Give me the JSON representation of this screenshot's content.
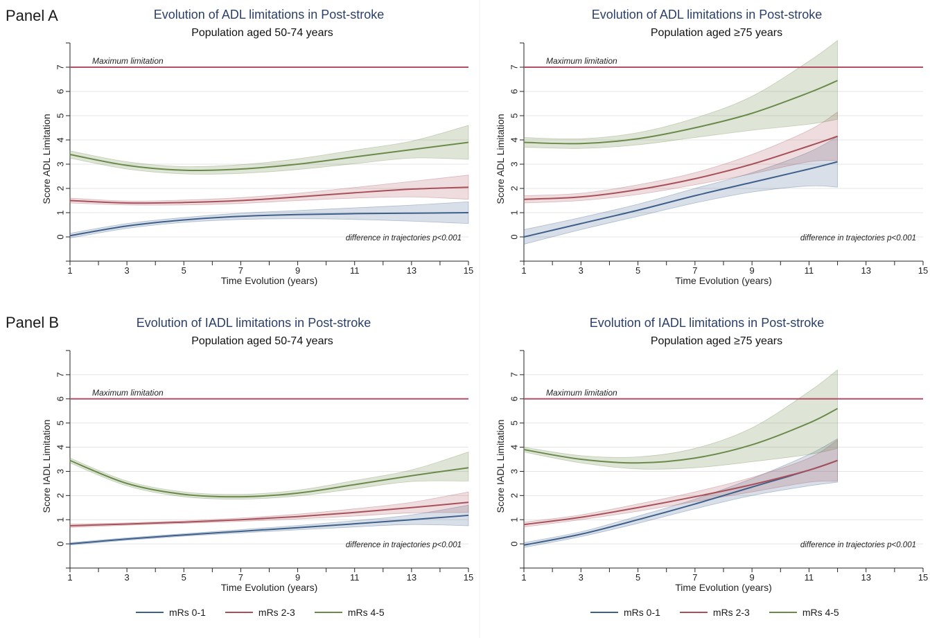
{
  "panel_labels": {
    "a": "Panel A",
    "b": "Panel B"
  },
  "legend": [
    {
      "label": "mRs 0-1",
      "color": "#3d5f8a"
    },
    {
      "label": "mRs 2-3",
      "color": "#a8505a"
    },
    {
      "label": "mRs 4-5",
      "color": "#6a8a4a"
    }
  ],
  "colors": {
    "title": "#2b3f6b",
    "max_line": "#b24d63",
    "axis": "#222222",
    "grid": "#e4e4e4"
  },
  "chart_data": [
    {
      "type": "line",
      "title": "Evolution of ADL limitations in Post-stroke",
      "subtitle": "Population aged 50-74 years",
      "xlabel": "Time Evolution (years)",
      "ylabel": "Score ADL Limitation",
      "xlim": [
        1,
        15
      ],
      "ylim": [
        -1,
        8
      ],
      "xticks": [
        1,
        3,
        5,
        7,
        9,
        11,
        13,
        15
      ],
      "yticks": [
        0,
        1,
        2,
        3,
        4,
        5,
        6,
        7
      ],
      "grid": true,
      "reference_line": {
        "y": 7,
        "label": "Maximum limitation"
      },
      "annotation": "difference in trajectories p<0.001",
      "x": [
        1,
        3,
        5,
        7,
        9,
        11,
        13,
        15
      ],
      "series": [
        {
          "name": "mRs 0-1",
          "values": [
            0.05,
            0.45,
            0.7,
            0.85,
            0.92,
            0.96,
            0.98,
            1.0
          ],
          "lower": [
            -0.05,
            0.35,
            0.6,
            0.72,
            0.75,
            0.72,
            0.65,
            0.55
          ],
          "upper": [
            0.15,
            0.55,
            0.8,
            0.98,
            1.09,
            1.2,
            1.31,
            1.45
          ]
        },
        {
          "name": "mRs 2-3",
          "values": [
            1.5,
            1.4,
            1.42,
            1.5,
            1.65,
            1.82,
            1.97,
            2.05
          ],
          "lower": [
            1.4,
            1.32,
            1.32,
            1.38,
            1.5,
            1.6,
            1.65,
            1.55
          ],
          "upper": [
            1.6,
            1.48,
            1.52,
            1.62,
            1.8,
            2.04,
            2.29,
            2.55
          ]
        },
        {
          "name": "mRs 4-5",
          "values": [
            3.4,
            2.95,
            2.75,
            2.8,
            3.0,
            3.3,
            3.6,
            3.9
          ],
          "lower": [
            3.25,
            2.8,
            2.6,
            2.62,
            2.78,
            3.02,
            3.25,
            3.2
          ],
          "upper": [
            3.55,
            3.1,
            2.9,
            2.98,
            3.22,
            3.58,
            3.95,
            4.6
          ]
        }
      ]
    },
    {
      "type": "line",
      "title": "Evolution of ADL limitations in Post-stroke",
      "subtitle": "Population aged ≥75 years",
      "xlabel": "Time Evolution (years)",
      "ylabel": "Score ADL Limitation",
      "xlim": [
        1,
        15
      ],
      "ylim": [
        -1,
        8
      ],
      "xticks": [
        1,
        3,
        5,
        7,
        9,
        11,
        13,
        15
      ],
      "yticks": [
        0,
        1,
        2,
        3,
        4,
        5,
        6,
        7
      ],
      "grid": true,
      "reference_line": {
        "y": 7,
        "label": "Maximum limitation"
      },
      "annotation": "difference in trajectories p<0.001",
      "x": [
        1,
        3,
        5,
        7,
        9,
        11,
        12
      ],
      "series": [
        {
          "name": "mRs 0-1",
          "values": [
            0.0,
            0.55,
            1.1,
            1.7,
            2.25,
            2.8,
            3.1
          ],
          "lower": [
            -0.3,
            0.3,
            0.85,
            1.4,
            1.85,
            2.1,
            2.05
          ],
          "upper": [
            0.3,
            0.8,
            1.35,
            2.0,
            2.65,
            3.5,
            4.15
          ]
        },
        {
          "name": "mRs 2-3",
          "values": [
            1.55,
            1.65,
            1.95,
            2.4,
            3.0,
            3.75,
            4.15
          ],
          "lower": [
            1.4,
            1.5,
            1.75,
            2.15,
            2.6,
            3.1,
            3.15
          ],
          "upper": [
            1.7,
            1.8,
            2.15,
            2.65,
            3.4,
            4.4,
            5.15
          ]
        },
        {
          "name": "mRs 4-5",
          "values": [
            3.9,
            3.85,
            4.05,
            4.5,
            5.1,
            5.95,
            6.45
          ],
          "lower": [
            3.7,
            3.65,
            3.8,
            4.1,
            4.4,
            4.65,
            4.85
          ],
          "upper": [
            4.1,
            4.05,
            4.3,
            4.9,
            5.8,
            7.25,
            8.1
          ]
        }
      ]
    },
    {
      "type": "line",
      "title": "Evolution of IADL limitations in Post-stroke",
      "subtitle": "Population aged 50-74 years",
      "xlabel": "Time Evolution (years)",
      "ylabel": "Score IADL Limitation",
      "xlim": [
        1,
        15
      ],
      "ylim": [
        -1,
        8
      ],
      "xticks": [
        1,
        3,
        5,
        7,
        9,
        11,
        13,
        15
      ],
      "yticks": [
        0,
        1,
        2,
        3,
        4,
        5,
        6,
        7
      ],
      "grid": true,
      "reference_line": {
        "y": 6,
        "label": "Maximum limitation"
      },
      "annotation": "difference in trajectories p<0.001",
      "x": [
        1,
        3,
        5,
        7,
        9,
        11,
        13,
        15
      ],
      "series": [
        {
          "name": "mRs 0-1",
          "values": [
            0.0,
            0.2,
            0.37,
            0.52,
            0.67,
            0.83,
            1.0,
            1.18
          ],
          "lower": [
            -0.05,
            0.15,
            0.32,
            0.45,
            0.58,
            0.7,
            0.8,
            0.75
          ],
          "upper": [
            0.05,
            0.25,
            0.42,
            0.59,
            0.76,
            0.96,
            1.2,
            1.6
          ]
        },
        {
          "name": "mRs 2-3",
          "values": [
            0.75,
            0.82,
            0.9,
            1.0,
            1.13,
            1.3,
            1.5,
            1.72
          ],
          "lower": [
            0.68,
            0.77,
            0.85,
            0.93,
            1.03,
            1.15,
            1.28,
            1.3
          ],
          "upper": [
            0.82,
            0.87,
            0.95,
            1.07,
            1.23,
            1.45,
            1.72,
            2.15
          ]
        },
        {
          "name": "mRs 4-5",
          "values": [
            3.45,
            2.5,
            2.05,
            1.95,
            2.1,
            2.45,
            2.82,
            3.15
          ],
          "lower": [
            3.35,
            2.4,
            1.95,
            1.85,
            1.98,
            2.28,
            2.58,
            2.6
          ],
          "upper": [
            3.55,
            2.6,
            2.15,
            2.05,
            2.22,
            2.62,
            3.06,
            3.8
          ]
        }
      ]
    },
    {
      "type": "line",
      "title": "Evolution of IADL limitations in Post-stroke",
      "subtitle": "Population aged ≥75 years",
      "xlabel": "Time Evolution (years)",
      "ylabel": "Score IADL Limitation",
      "xlim": [
        1,
        15
      ],
      "ylim": [
        -1,
        8
      ],
      "xticks": [
        1,
        3,
        5,
        7,
        9,
        11,
        13,
        15
      ],
      "yticks": [
        0,
        1,
        2,
        3,
        4,
        5,
        6,
        7
      ],
      "grid": true,
      "reference_line": {
        "y": 6,
        "label": "Maximum limitation"
      },
      "annotation": "difference in trajectories p<0.001",
      "x": [
        1,
        3,
        5,
        7,
        9,
        11,
        12
      ],
      "series": [
        {
          "name": "mRs 0-1",
          "values": [
            -0.05,
            0.4,
            1.0,
            1.65,
            2.35,
            3.05,
            3.45
          ],
          "lower": [
            -0.15,
            0.3,
            0.85,
            1.45,
            2.0,
            2.4,
            2.55
          ],
          "upper": [
            0.05,
            0.5,
            1.15,
            1.85,
            2.7,
            3.7,
            4.35
          ]
        },
        {
          "name": "mRs 2-3",
          "values": [
            0.8,
            1.1,
            1.5,
            1.95,
            2.45,
            3.05,
            3.45
          ],
          "lower": [
            0.7,
            1.0,
            1.35,
            1.75,
            2.15,
            2.55,
            2.6
          ],
          "upper": [
            0.9,
            1.2,
            1.65,
            2.15,
            2.75,
            3.55,
            4.3
          ]
        },
        {
          "name": "mRs 4-5",
          "values": [
            3.9,
            3.5,
            3.35,
            3.55,
            4.1,
            5.0,
            5.6
          ],
          "lower": [
            3.8,
            3.35,
            3.1,
            3.15,
            3.4,
            3.7,
            3.95
          ],
          "upper": [
            4.0,
            3.65,
            3.6,
            3.95,
            4.8,
            6.3,
            7.2
          ]
        }
      ]
    }
  ]
}
